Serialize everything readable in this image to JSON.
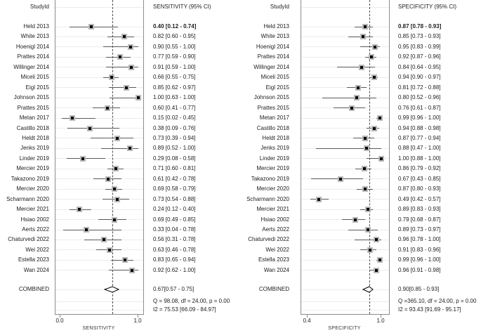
{
  "colors": {
    "marker_center": "#000000",
    "marker_weight_box": "#b8b8b8",
    "ci_line": "#595959",
    "plot_border": "#8c8c8c",
    "gridline": "#ececec",
    "dashed_line": "#4d4d4d",
    "diamond_fill": "#ffffff",
    "diamond_stroke": "#000000"
  },
  "chart_data": {
    "type": "forest",
    "grid": true,
    "panels": [
      {
        "id": "sensitivity",
        "study_header": "StudyId",
        "value_header": "SENSITIVITY (95% CI)",
        "xlabel": "SENSITIVITY",
        "ticks": [
          {
            "label": "0.0",
            "value": 0.0
          },
          {
            "label": "1.0",
            "value": 1.0
          }
        ],
        "axis_box_value_range": [
          -0.063,
          1.063
        ],
        "dashed_line_value": 0.67,
        "studies": [
          {
            "label": "Held 2013",
            "est": 0.4,
            "lo": 0.12,
            "hi": 0.74,
            "text": "0.40 [0.12 - 0.74]",
            "bold": true
          },
          {
            "label": "White 2013",
            "est": 0.82,
            "lo": 0.6,
            "hi": 0.95,
            "text": "0.82 [0.60 - 0.95]"
          },
          {
            "label": "Hoenigl 2014",
            "est": 0.9,
            "lo": 0.55,
            "hi": 1.0,
            "text": "0.90 [0.55 - 1.00]"
          },
          {
            "label": "Prattes 2014",
            "est": 0.77,
            "lo": 0.59,
            "hi": 0.9,
            "text": "0.77 [0.59 - 0.90]"
          },
          {
            "label": "Willinger 2014",
            "est": 0.91,
            "lo": 0.59,
            "hi": 1.0,
            "text": "0.91 [0.59 - 1.00]"
          },
          {
            "label": "Miceli 2015",
            "est": 0.66,
            "lo": 0.55,
            "hi": 0.75,
            "text": "0.66 [0.55 - 0.75]"
          },
          {
            "label": "Eigl 2015",
            "est": 0.85,
            "lo": 0.62,
            "hi": 0.97,
            "text": "0.85 [0.62 - 0.97]"
          },
          {
            "label": "Johnson 2015",
            "est": 1.0,
            "lo": 0.63,
            "hi": 1.0,
            "text": "1.00 [0.63 - 1.00]"
          },
          {
            "label": "Prattes 2015",
            "est": 0.6,
            "lo": 0.41,
            "hi": 0.77,
            "text": "0.60 [0.41 - 0.77]"
          },
          {
            "label": "Metan 2017",
            "est": 0.15,
            "lo": 0.02,
            "hi": 0.45,
            "text": "0.15 [0.02 - 0.45]"
          },
          {
            "label": "Castillo 2018",
            "est": 0.38,
            "lo": 0.09,
            "hi": 0.76,
            "text": "0.38 [0.09 - 0.76]"
          },
          {
            "label": "Heldt 2018",
            "est": 0.73,
            "lo": 0.39,
            "hi": 0.94,
            "text": "0.73 [0.39 - 0.94]"
          },
          {
            "label": "Jenks 2019",
            "est": 0.89,
            "lo": 0.52,
            "hi": 1.0,
            "text": "0.89 [0.52 - 1.00]"
          },
          {
            "label": "Linder 2019",
            "est": 0.29,
            "lo": 0.08,
            "hi": 0.58,
            "text": "0.29 [0.08 - 0.58]"
          },
          {
            "label": "Mercier 2019",
            "est": 0.71,
            "lo": 0.6,
            "hi": 0.81,
            "text": "0.71 [0.60 - 0.81]"
          },
          {
            "label": "Takazono 2019",
            "est": 0.61,
            "lo": 0.42,
            "hi": 0.78,
            "text": "0.61 [0.42 - 0.78]"
          },
          {
            "label": "Mercier 2020",
            "est": 0.69,
            "lo": 0.58,
            "hi": 0.79,
            "text": "0.69 [0.58 - 0.79]"
          },
          {
            "label": "Scharmann 2020",
            "est": 0.73,
            "lo": 0.54,
            "hi": 0.88,
            "text": "0.73 [0.54 - 0.88]"
          },
          {
            "label": "Mercier 2021",
            "est": 0.24,
            "lo": 0.12,
            "hi": 0.4,
            "text": "0.24 [0.12 - 0.40]"
          },
          {
            "label": "Hsiao 2002",
            "est": 0.69,
            "lo": 0.49,
            "hi": 0.85,
            "text": "0.69 [0.49 - 0.85]"
          },
          {
            "label": "Aerts 2022",
            "est": 0.33,
            "lo": 0.04,
            "hi": 0.78,
            "text": "0.33 [0.04 - 0.78]"
          },
          {
            "label": "Chaturvedi 2022",
            "est": 0.56,
            "lo": 0.31,
            "hi": 0.78,
            "text": "0.56 [0.31 - 0.78]"
          },
          {
            "label": "Wei 2022",
            "est": 0.63,
            "lo": 0.46,
            "hi": 0.78,
            "text": "0.63 [0.46 - 0.78]"
          },
          {
            "label": "Estella 2023",
            "est": 0.83,
            "lo": 0.65,
            "hi": 0.94,
            "text": "0.83 [0.65 - 0.94]"
          },
          {
            "label": "Wan 2024",
            "est": 0.92,
            "lo": 0.62,
            "hi": 1.0,
            "text": "0.92 [0.62 - 1.00]"
          }
        ],
        "combined": {
          "label": "COMBINED",
          "est": 0.67,
          "lo": 0.57,
          "hi": 0.75,
          "text": "0.67[0.57 - 0.75]"
        },
        "stats": [
          "Q = 98.08, df = 24.00, p = 0.00",
          "I2 = 75.53 [66.09 - 84.97]"
        ]
      },
      {
        "id": "specificity",
        "study_header": "StudyId",
        "value_header": "SPECIFICITY (95% CI)",
        "xlabel": "SPECIFICITY",
        "ticks": [
          {
            "label": "0.4",
            "value": 0.4
          },
          {
            "label": "1.0",
            "value": 1.0
          }
        ],
        "axis_box_value_range": [
          0.349,
          1.063
        ],
        "dashed_line_value": 0.9,
        "studies": [
          {
            "label": "Held 2013",
            "est": 0.87,
            "lo": 0.78,
            "hi": 0.93,
            "text": "0.87 [0.78 - 0.93]",
            "bold": true
          },
          {
            "label": "White 2013",
            "est": 0.85,
            "lo": 0.73,
            "hi": 0.93,
            "text": "0.85 [0.73 - 0.93]"
          },
          {
            "label": "Hoenigl 2014",
            "est": 0.95,
            "lo": 0.83,
            "hi": 0.99,
            "text": "0.95 [0.83 - 0.99]"
          },
          {
            "label": "Prattes 2014",
            "est": 0.92,
            "lo": 0.87,
            "hi": 0.96,
            "text": "0.92 [0.87 - 0.96]"
          },
          {
            "label": "Willinger 2014",
            "est": 0.84,
            "lo": 0.64,
            "hi": 0.95,
            "text": "0.84 [0.64 - 0.95]"
          },
          {
            "label": "Miceli 2015",
            "est": 0.94,
            "lo": 0.9,
            "hi": 0.97,
            "text": "0.94 [0.90 - 0.97]"
          },
          {
            "label": "Eigl 2015",
            "est": 0.81,
            "lo": 0.72,
            "hi": 0.88,
            "text": "0.81 [0.72 - 0.88]"
          },
          {
            "label": "Johnson 2015",
            "est": 0.8,
            "lo": 0.52,
            "hi": 0.96,
            "text": "0.80 [0.52 - 0.96]"
          },
          {
            "label": "Prattes 2015",
            "est": 0.76,
            "lo": 0.61,
            "hi": 0.87,
            "text": "0.76 [0.61 - 0.87]"
          },
          {
            "label": "Metan 2017",
            "est": 0.99,
            "lo": 0.96,
            "hi": 1.0,
            "text": "0.99 [0.96 - 1.00]"
          },
          {
            "label": "Castillo 2018",
            "est": 0.94,
            "lo": 0.88,
            "hi": 0.98,
            "text": "0.94 [0.88 - 0.98]"
          },
          {
            "label": "Heldt 2018",
            "est": 0.87,
            "lo": 0.77,
            "hi": 0.94,
            "text": "0.87 [0.77 - 0.94]"
          },
          {
            "label": "Jenks 2019",
            "est": 0.88,
            "lo": 0.47,
            "hi": 1.0,
            "text": "0.88 [0.47 - 1.00]"
          },
          {
            "label": "Linder 2019",
            "est": 1.0,
            "lo": 0.88,
            "hi": 1.0,
            "text": "1.00 [0.88 - 1.00]"
          },
          {
            "label": "Mercier 2019",
            "est": 0.86,
            "lo": 0.79,
            "hi": 0.92,
            "text": "0.86 [0.79 - 0.92]"
          },
          {
            "label": "Takazono 2019",
            "est": 0.67,
            "lo": 0.43,
            "hi": 0.85,
            "text": "0.67 [0.43 - 0.85]"
          },
          {
            "label": "Mercier 2020",
            "est": 0.87,
            "lo": 0.8,
            "hi": 0.93,
            "text": "0.87 [0.80 - 0.93]"
          },
          {
            "label": "Scharmann 2020",
            "est": 0.49,
            "lo": 0.42,
            "hi": 0.57,
            "text": "0.49 [0.42 - 0.57]"
          },
          {
            "label": "Mercier 2021",
            "est": 0.89,
            "lo": 0.83,
            "hi": 0.93,
            "text": "0.89 [0.83 - 0.93]"
          },
          {
            "label": "Hsiao 2002",
            "est": 0.79,
            "lo": 0.68,
            "hi": 0.87,
            "text": "0.79 [0.68 - 0.87]"
          },
          {
            "label": "Aerts 2022",
            "est": 0.89,
            "lo": 0.73,
            "hi": 0.97,
            "text": "0.89 [0.73 - 0.97]"
          },
          {
            "label": "Chaturvedi 2022",
            "est": 0.96,
            "lo": 0.78,
            "hi": 1.0,
            "text": "0.96 [0.78 - 1.00]"
          },
          {
            "label": "Wei 2022",
            "est": 0.91,
            "lo": 0.83,
            "hi": 0.96,
            "text": "0.91 [0.83 - 0.96]"
          },
          {
            "label": "Estella 2023",
            "est": 0.99,
            "lo": 0.96,
            "hi": 1.0,
            "text": "0.99 [0.96 - 1.00]"
          },
          {
            "label": "Wan 2024",
            "est": 0.96,
            "lo": 0.91,
            "hi": 0.98,
            "text": "0.96 [0.91 - 0.98]"
          }
        ],
        "combined": {
          "label": "COMBINED",
          "est": 0.9,
          "lo": 0.85,
          "hi": 0.93,
          "text": "0.90[0.85 - 0.93]"
        },
        "stats": [
          "Q =365.10, df = 24.00, p = 0.00",
          "I2 = 93.43 [91.69 - 95.17]"
        ]
      }
    ]
  }
}
